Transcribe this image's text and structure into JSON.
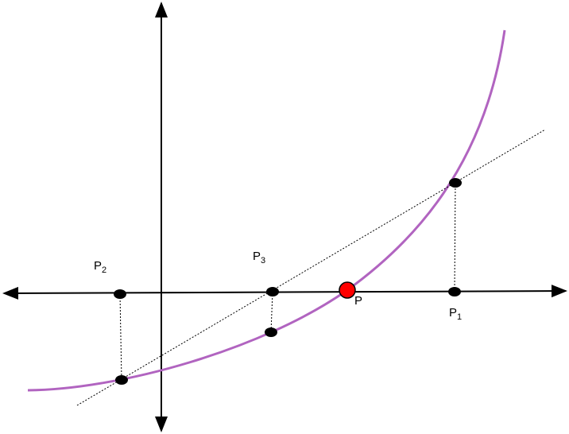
{
  "points": [
    {
      "label": "P",
      "subscript": "2"
    },
    {
      "label": "P",
      "subscript": "3"
    },
    {
      "label": "P"
    },
    {
      "label": "P",
      "subscript": "1"
    }
  ]
}
